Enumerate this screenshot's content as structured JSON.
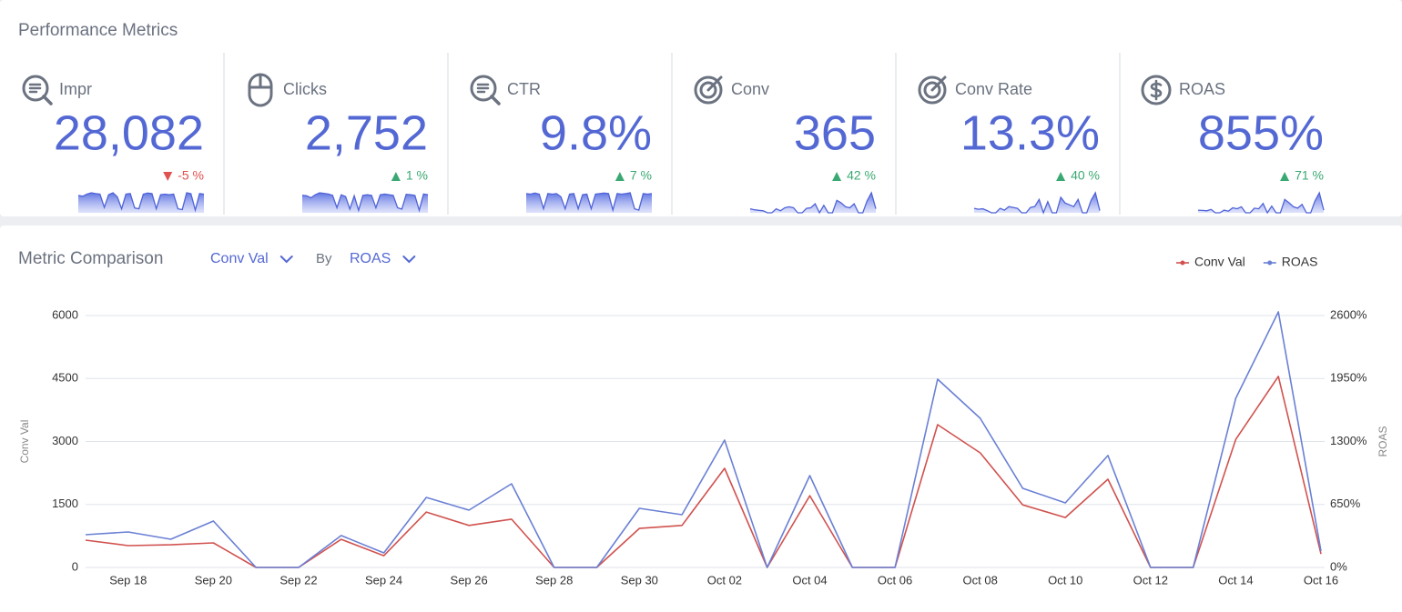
{
  "header": {
    "title": "Performance Metrics"
  },
  "kpis": [
    {
      "label": "Impr",
      "value": "28,082",
      "change": "-5 %",
      "direction": "down",
      "sparkline": [
        65,
        62,
        70,
        75,
        72,
        70,
        20,
        68,
        75,
        60,
        15,
        70,
        72,
        18,
        15,
        70,
        74,
        72,
        15,
        68,
        70,
        68,
        70,
        15,
        12,
        75,
        72,
        10,
        72,
        70
      ]
    },
    {
      "label": "Clicks",
      "value": "2,752",
      "change": "1 %",
      "direction": "up",
      "sparkline": [
        70,
        68,
        60,
        72,
        80,
        78,
        75,
        70,
        20,
        72,
        65,
        15,
        68,
        10,
        70,
        72,
        70,
        20,
        72,
        75,
        72,
        70,
        20,
        15,
        74,
        72,
        70,
        10,
        75,
        72
      ]
    },
    {
      "label": "CTR",
      "value": "9.8%",
      "change": "7 %",
      "direction": "up",
      "sparkline": [
        72,
        70,
        74,
        70,
        15,
        72,
        70,
        72,
        60,
        15,
        70,
        72,
        15,
        68,
        70,
        15,
        70,
        72,
        74,
        72,
        10,
        72,
        70,
        72,
        75,
        15,
        10,
        72,
        70,
        72
      ]
    },
    {
      "label": "Conv",
      "value": "365",
      "change": "42 %",
      "direction": "up",
      "sparkline": [
        8,
        6,
        5,
        4,
        0,
        0,
        8,
        4,
        10,
        12,
        10,
        0,
        0,
        9,
        10,
        18,
        0,
        15,
        0,
        0,
        25,
        20,
        12,
        10,
        18,
        0,
        0,
        24,
        40,
        8
      ]
    },
    {
      "label": "Conv Rate",
      "value": "13.3%",
      "change": "40 %",
      "direction": "up",
      "sparkline": [
        10,
        8,
        9,
        5,
        0,
        0,
        10,
        6,
        14,
        12,
        10,
        0,
        0,
        12,
        14,
        30,
        0,
        25,
        0,
        0,
        35,
        22,
        18,
        14,
        30,
        0,
        0,
        28,
        45,
        5
      ]
    },
    {
      "label": "ROAS",
      "value": "855%",
      "change": "71 %",
      "direction": "up",
      "sparkline": [
        8,
        7,
        6,
        10,
        0,
        0,
        8,
        5,
        15,
        12,
        18,
        0,
        0,
        14,
        12,
        28,
        0,
        20,
        0,
        0,
        40,
        30,
        18,
        14,
        25,
        0,
        0,
        36,
        60,
        8
      ]
    }
  ],
  "chart_data": {
    "type": "line",
    "title": "Metric Comparison",
    "controls": {
      "metric": "Conv Val",
      "by": "By",
      "compare": "ROAS"
    },
    "categories": [
      null,
      "Sep 18",
      null,
      "Sep 20",
      null,
      "Sep 22",
      null,
      "Sep 24",
      null,
      "Sep 26",
      null,
      "Sep 28",
      null,
      "Sep 30",
      null,
      "Oct 02",
      null,
      "Oct 04",
      null,
      "Oct 06",
      null,
      "Oct 08",
      null,
      "Oct 10",
      null,
      "Oct 12",
      null,
      "Oct 14",
      null,
      "Oct 16"
    ],
    "series": [
      {
        "name": "Conv Val",
        "color": "#d0524f",
        "values": [
          650,
          520,
          540,
          585,
          0,
          0,
          670,
          280,
          1320,
          1000,
          1150,
          0,
          0,
          930,
          1000,
          2360,
          0,
          1710,
          0,
          0,
          3400,
          2730,
          1490,
          1190,
          2100,
          0,
          0,
          3050,
          4550,
          320
        ]
      },
      {
        "name": "ROAS",
        "color": "#6a80d4",
        "axis": "y2",
        "values": [
          338,
          366,
          291,
          479,
          0,
          0,
          329,
          150,
          723,
          591,
          864,
          0,
          0,
          610,
          544,
          1314,
          0,
          948,
          0,
          0,
          1943,
          1539,
          817,
          666,
          1155,
          0,
          0,
          1746,
          2638,
          169
        ]
      }
    ],
    "ylabel": "Conv Val",
    "y2label": "ROAS",
    "ylim": [
      0,
      6000
    ],
    "yticks": [
      0,
      1500,
      3000,
      4500,
      6000
    ],
    "y2lim": [
      0,
      2600
    ],
    "y2ticks": [
      {
        "value": 0,
        "label": "0%"
      },
      {
        "value": 650,
        "label": "650%"
      },
      {
        "value": 1300,
        "label": "1300%"
      },
      {
        "value": 1950,
        "label": "1950%"
      },
      {
        "value": 2600,
        "label": "2600%"
      }
    ],
    "grid": true,
    "legend": "top-right"
  }
}
